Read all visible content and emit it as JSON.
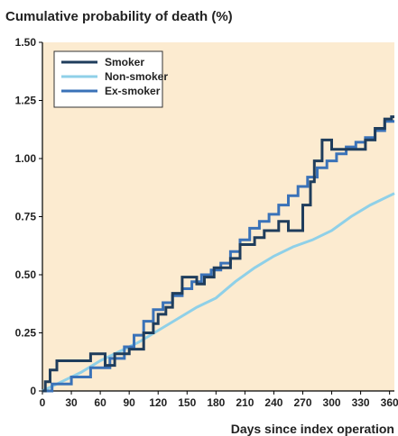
{
  "chart_data": {
    "type": "line",
    "title": "Cumulative probability of death (%)",
    "xlabel": "Days since index operation",
    "ylabel": "",
    "xlim": [
      0,
      365
    ],
    "ylim": [
      0,
      1.5
    ],
    "xticks": [
      "0",
      "30",
      "60",
      "90",
      "120",
      "150",
      "180",
      "210",
      "240",
      "270",
      "300",
      "330",
      "360"
    ],
    "xtick_values": [
      0,
      30,
      60,
      90,
      120,
      150,
      180,
      210,
      240,
      270,
      300,
      330,
      360
    ],
    "yticks": [
      "0",
      "0.25",
      "0.50",
      "0.75",
      "1.00",
      "1.25",
      "1.50"
    ],
    "ytick_values": [
      0,
      0.25,
      0.5,
      0.75,
      1.0,
      1.25,
      1.5
    ],
    "background_color": "#fcebd0",
    "grid": false,
    "legend_position": "top-left",
    "series": [
      {
        "name": "Smoker",
        "color": "#1f3d5c",
        "step": true,
        "x": [
          0,
          3,
          3,
          8,
          8,
          15,
          15,
          50,
          50,
          65,
          65,
          75,
          75,
          90,
          90,
          105,
          105,
          115,
          115,
          120,
          120,
          128,
          128,
          135,
          135,
          145,
          145,
          160,
          160,
          168,
          168,
          178,
          178,
          195,
          195,
          205,
          205,
          220,
          220,
          230,
          230,
          245,
          245,
          255,
          255,
          270,
          270,
          278,
          278,
          282,
          282,
          290,
          290,
          300,
          300,
          335,
          335,
          345,
          345,
          355,
          355,
          362,
          362,
          365
        ],
        "y": [
          0,
          0,
          0.04,
          0.04,
          0.09,
          0.09,
          0.13,
          0.13,
          0.16,
          0.16,
          0.11,
          0.11,
          0.16,
          0.16,
          0.18,
          0.18,
          0.25,
          0.25,
          0.29,
          0.29,
          0.33,
          0.33,
          0.36,
          0.36,
          0.42,
          0.42,
          0.49,
          0.49,
          0.46,
          0.46,
          0.49,
          0.49,
          0.53,
          0.53,
          0.57,
          0.57,
          0.63,
          0.63,
          0.66,
          0.66,
          0.69,
          0.69,
          0.73,
          0.73,
          0.69,
          0.69,
          0.8,
          0.8,
          0.9,
          0.9,
          0.99,
          0.99,
          1.08,
          1.08,
          1.04,
          1.04,
          1.08,
          1.08,
          1.13,
          1.13,
          1.17,
          1.17,
          1.18,
          1.18
        ]
      },
      {
        "name": "Non-smoker",
        "color": "#8fd0e8",
        "step": false,
        "x": [
          0,
          20,
          40,
          60,
          80,
          100,
          120,
          140,
          160,
          180,
          200,
          220,
          240,
          260,
          280,
          300,
          320,
          340,
          365
        ],
        "y": [
          0,
          0.04,
          0.08,
          0.13,
          0.17,
          0.21,
          0.26,
          0.31,
          0.36,
          0.4,
          0.47,
          0.53,
          0.58,
          0.62,
          0.65,
          0.69,
          0.75,
          0.8,
          0.85
        ]
      },
      {
        "name": "Ex-smoker",
        "color": "#3a72b8",
        "step": true,
        "x": [
          0,
          10,
          10,
          30,
          30,
          50,
          50,
          70,
          70,
          85,
          85,
          95,
          95,
          105,
          105,
          115,
          115,
          125,
          125,
          135,
          135,
          145,
          145,
          155,
          155,
          165,
          165,
          175,
          175,
          185,
          185,
          195,
          195,
          205,
          205,
          215,
          215,
          225,
          225,
          235,
          235,
          245,
          245,
          255,
          255,
          265,
          265,
          275,
          275,
          285,
          285,
          295,
          295,
          305,
          305,
          315,
          315,
          325,
          325,
          335,
          335,
          345,
          345,
          355,
          355,
          365
        ],
        "y": [
          0,
          0,
          0.03,
          0.03,
          0.06,
          0.06,
          0.1,
          0.1,
          0.14,
          0.14,
          0.19,
          0.19,
          0.24,
          0.24,
          0.3,
          0.3,
          0.35,
          0.35,
          0.38,
          0.38,
          0.41,
          0.41,
          0.44,
          0.44,
          0.47,
          0.47,
          0.5,
          0.5,
          0.52,
          0.52,
          0.55,
          0.55,
          0.6,
          0.6,
          0.65,
          0.65,
          0.7,
          0.7,
          0.73,
          0.73,
          0.76,
          0.76,
          0.8,
          0.8,
          0.84,
          0.84,
          0.88,
          0.88,
          0.92,
          0.92,
          0.96,
          0.96,
          0.99,
          0.99,
          1.02,
          1.02,
          1.05,
          1.05,
          1.07,
          1.07,
          1.09,
          1.09,
          1.12,
          1.12,
          1.16,
          1.16
        ]
      }
    ]
  }
}
